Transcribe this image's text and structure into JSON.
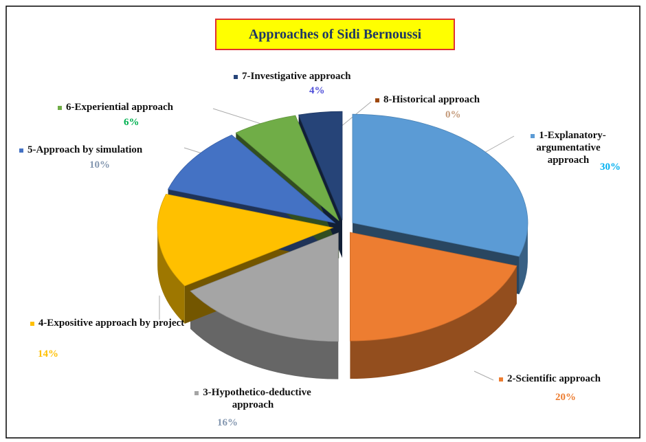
{
  "chart_data": {
    "type": "pie",
    "title": "Approaches of Sidi Bernoussi",
    "categories": [
      "1-Explanatory-argumentative approach",
      "2-Scientific approach",
      "3-Hypothetico-deductive approach",
      "4-Expositive approach by project",
      "5-Approach by simulation",
      "6-Experiential approach",
      "7-Investigative approach",
      "8-Historical approach"
    ],
    "values": [
      30,
      20,
      16,
      14,
      10,
      6,
      4,
      0
    ],
    "value_labels": [
      "30%",
      "20%",
      "16%",
      "14%",
      "10%",
      "6%",
      "4%",
      "0%"
    ],
    "colors": [
      "#5b9bd5",
      "#ed7d31",
      "#a5a5a5",
      "#ffc000",
      "#4472c4",
      "#70ad47",
      "#264478",
      "#9e480e"
    ],
    "value_label_colors": [
      "#00b0f0",
      "#ed7d31",
      "#8497b0",
      "#ffc000",
      "#8497b0",
      "#00b050",
      "#4f4fd9",
      "#c49a7a"
    ]
  }
}
